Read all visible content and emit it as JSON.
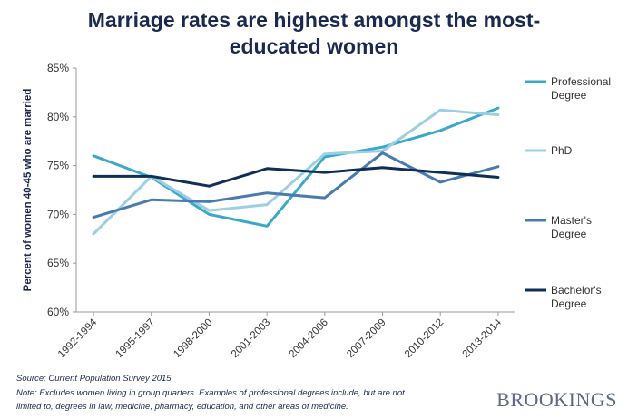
{
  "header": {
    "title_line1": "Marriage rates are highest amongst the most-",
    "title_line2": "educated women"
  },
  "footer": {
    "source": "Source: Current Population Survey 2015",
    "note_line1": "Note: Excludes women living in group quarters. Examples of professional degrees include, but are not",
    "note_line2": "limited to, degrees in law, medicine, pharmacy, education, and other areas of medicine.",
    "brand": "BROOKINGS"
  },
  "chart_data": {
    "type": "line",
    "title": "Marriage rates are highest amongst the most-educated women",
    "xlabel": "",
    "ylabel": "Percent of women 40-45 who are married",
    "ylim": [
      60,
      85
    ],
    "yticks": [
      60,
      65,
      70,
      75,
      80,
      85
    ],
    "ytick_labels": [
      "60%",
      "65%",
      "70%",
      "75%",
      "80%",
      "85%"
    ],
    "categories": [
      "1992-1994",
      "1995-1997",
      "1998-2000",
      "2001-2003",
      "2004-2006",
      "2007-2009",
      "2010-2012",
      "2013-2014"
    ],
    "series": [
      {
        "name": "Professional Degree",
        "label_lines": [
          "Professional",
          "Degree"
        ],
        "color": "#3aa8c8",
        "values": [
          76.0,
          73.8,
          70.0,
          68.8,
          75.9,
          76.9,
          78.6,
          80.9
        ]
      },
      {
        "name": "PhD",
        "label_lines": [
          "PhD"
        ],
        "color": "#9ccfe0",
        "values": [
          68.0,
          73.9,
          70.4,
          71.0,
          76.2,
          76.5,
          80.7,
          80.2
        ]
      },
      {
        "name": "Master's Degree",
        "label_lines": [
          "Master's",
          "Degree"
        ],
        "color": "#4a7bb0",
        "values": [
          69.7,
          71.5,
          71.3,
          72.2,
          71.7,
          76.3,
          73.3,
          74.9
        ]
      },
      {
        "name": "Bachelor's Degree",
        "label_lines": [
          "Bachelor's",
          "Degree"
        ],
        "color": "#0f2f56",
        "values": [
          73.9,
          73.9,
          72.9,
          74.7,
          74.3,
          74.8,
          74.3,
          73.8
        ]
      }
    ],
    "legend": "right"
  }
}
